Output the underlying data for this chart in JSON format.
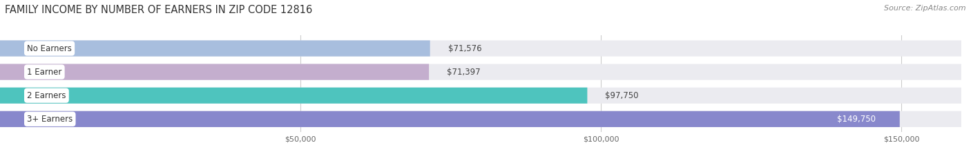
{
  "title": "FAMILY INCOME BY NUMBER OF EARNERS IN ZIP CODE 12816",
  "source": "Source: ZipAtlas.com",
  "categories": [
    "No Earners",
    "1 Earner",
    "2 Earners",
    "3+ Earners"
  ],
  "values": [
    71576,
    71397,
    97750,
    149750
  ],
  "labels": [
    "$71,576",
    "$71,397",
    "$97,750",
    "$149,750"
  ],
  "bar_colors": [
    "#a8bede",
    "#c4aece",
    "#4ec4be",
    "#8888cc"
  ],
  "bg_color": "#ffffff",
  "row_bg_color": "#ebebf0",
  "xlim_max": 160000,
  "xticks": [
    50000,
    100000,
    150000
  ],
  "xticklabels": [
    "$50,000",
    "$100,000",
    "$150,000"
  ],
  "title_fontsize": 10.5,
  "source_fontsize": 8,
  "label_fontsize": 8.5,
  "category_fontsize": 8.5,
  "white_label_threshold": 0.92
}
